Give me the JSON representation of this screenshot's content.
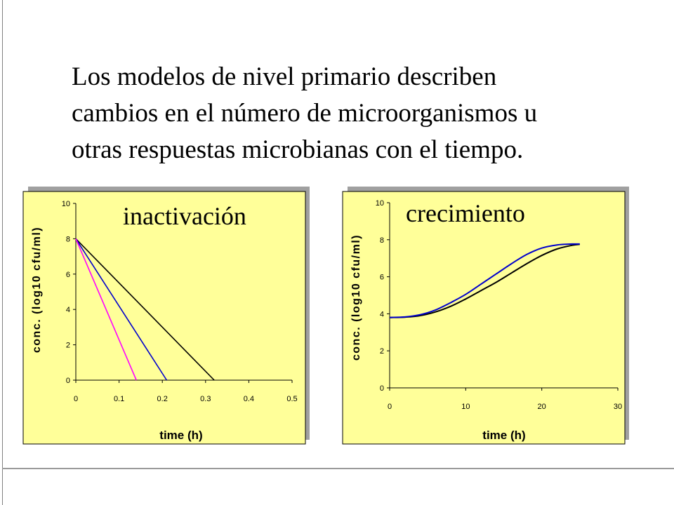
{
  "intro_text": [
    "Los modelos de nivel primario describen",
    "cambios en el número de microorganismos u",
    "otras respuestas microbianas con el tiempo."
  ],
  "colors": {
    "plot_bg": "#FFFF99",
    "shadow": "#A0A0A0",
    "series_black": "#000000",
    "series_blue": "#0000CC",
    "series_magenta": "#FF00FF"
  },
  "chart_data": [
    {
      "type": "line",
      "title": "inactivación",
      "xlabel": "time (h)",
      "ylabel": "conc. (log10 cfu/ml)",
      "xlim": [
        0,
        0.5
      ],
      "ylim": [
        0,
        10
      ],
      "xticks": [
        "0",
        "0.1",
        "0.2",
        "0.3",
        "0.4",
        "0.5"
      ],
      "yticks": [
        "0",
        "2",
        "4",
        "6",
        "8",
        "10"
      ],
      "series": [
        {
          "color": "#000000",
          "x": [
            0,
            0.32
          ],
          "values": [
            8,
            0
          ]
        },
        {
          "color": "#0000CC",
          "x": [
            0,
            0.21
          ],
          "values": [
            8,
            0
          ]
        },
        {
          "color": "#FF00FF",
          "x": [
            0,
            0.14
          ],
          "values": [
            8,
            0
          ]
        }
      ]
    },
    {
      "type": "line",
      "title": "crecimiento",
      "xlabel": "time (h)",
      "ylabel": "conc. (log10 cfu/ml)",
      "xlim": [
        0,
        30
      ],
      "ylim": [
        0,
        10
      ],
      "xticks": [
        "0",
        "10",
        "20",
        "30"
      ],
      "yticks": [
        "0",
        "2",
        "4",
        "6",
        "8",
        "10"
      ],
      "series": [
        {
          "color": "#000000",
          "x": [
            0,
            2,
            4,
            6,
            8,
            10,
            12,
            14,
            16,
            18,
            20,
            22,
            24,
            25
          ],
          "values": [
            3.8,
            3.82,
            3.9,
            4.1,
            4.4,
            4.8,
            5.25,
            5.7,
            6.2,
            6.7,
            7.15,
            7.5,
            7.7,
            7.75
          ]
        },
        {
          "color": "#0000CC",
          "x": [
            0,
            2,
            4,
            6,
            8,
            10,
            12,
            14,
            16,
            18,
            20,
            22,
            24,
            25
          ],
          "values": [
            3.8,
            3.83,
            3.95,
            4.2,
            4.6,
            5.05,
            5.6,
            6.15,
            6.7,
            7.2,
            7.55,
            7.72,
            7.77,
            7.77
          ]
        }
      ]
    }
  ]
}
